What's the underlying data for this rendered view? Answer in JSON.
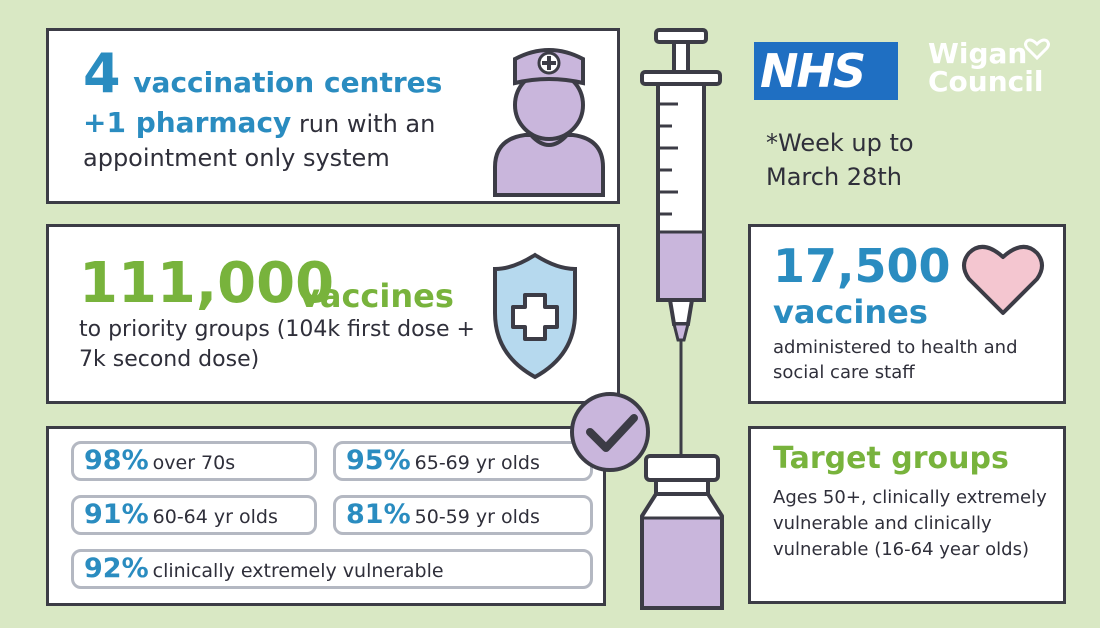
{
  "centres": {
    "count": "4",
    "count_label": "vaccination centres",
    "pharmacy": "+1 pharmacy",
    "line2_rest": "run with an",
    "line3": "appointment only system"
  },
  "vaccines": {
    "total": "111,000",
    "word": "vaccines",
    "description": "to priority groups (104k first dose + 7k second dose)"
  },
  "rates": [
    {
      "pct": "98%",
      "label": "over 70s"
    },
    {
      "pct": "95%",
      "label": "65-69 yr olds"
    },
    {
      "pct": "91%",
      "label": "60-64 yr olds"
    },
    {
      "pct": "81%",
      "label": "50-59 yr olds"
    },
    {
      "pct": "92%",
      "label": "clinically extremely vulnerable"
    }
  ],
  "logos": {
    "nhs": "NHS",
    "council_line1": "Wigan",
    "council_line2": "Council"
  },
  "week_note": "*Week up to March 28th",
  "staff": {
    "total": "17,500",
    "word": "vaccines",
    "description": "administered to health and social care staff"
  },
  "target": {
    "title": "Target groups",
    "description": "Ages 50+, clinically extremely vulnerable and clinically vulnerable (16-64 year olds)"
  },
  "colors": {
    "background": "#d9e8c4",
    "blue": "#2a8cc0",
    "green": "#78b33c",
    "purple": "#c9b6dc",
    "heart": "#f4c6d0",
    "shield": "#b6d9ee",
    "nhs_blue": "#1f6fc2"
  }
}
